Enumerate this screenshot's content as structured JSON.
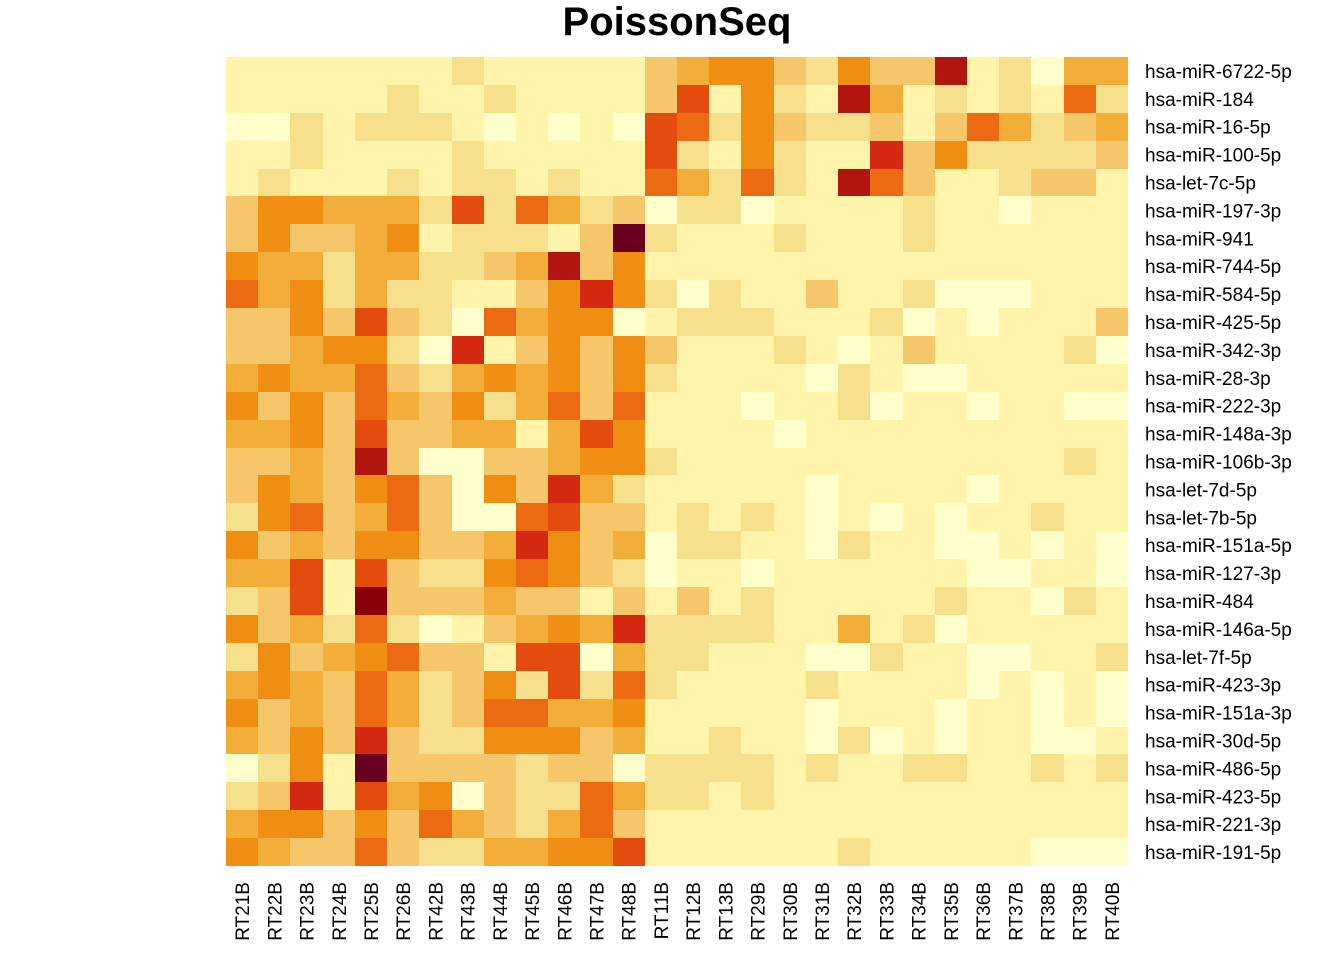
{
  "chart_data": {
    "type": "heatmap",
    "title": "PoissonSeq",
    "columns": [
      "RT21B",
      "RT22B",
      "RT23B",
      "RT24B",
      "RT25B",
      "RT26B",
      "RT42B",
      "RT43B",
      "RT44B",
      "RT45B",
      "RT46B",
      "RT47B",
      "RT48B",
      "RT11B",
      "RT12B",
      "RT13B",
      "RT29B",
      "RT30B",
      "RT31B",
      "RT32B",
      "RT33B",
      "RT34B",
      "RT35B",
      "RT36B",
      "RT37B",
      "RT38B",
      "RT39B",
      "RT40B"
    ],
    "rows": [
      "hsa-miR-6722-5p",
      "hsa-miR-184",
      "hsa-miR-16-5p",
      "hsa-miR-100-5p",
      "hsa-let-7c-5p",
      "hsa-miR-197-3p",
      "hsa-miR-941",
      "hsa-miR-744-5p",
      "hsa-miR-584-5p",
      "hsa-miR-425-5p",
      "hsa-miR-342-3p",
      "hsa-miR-28-3p",
      "hsa-miR-222-3p",
      "hsa-miR-148a-3p",
      "hsa-miR-106b-3p",
      "hsa-let-7d-5p",
      "hsa-let-7b-5p",
      "hsa-miR-151a-5p",
      "hsa-miR-127-3p",
      "hsa-miR-484",
      "hsa-miR-146a-5p",
      "hsa-let-7f-5p",
      "hsa-miR-423-3p",
      "hsa-miR-151a-3p",
      "hsa-miR-30d-5p",
      "hsa-miR-486-5p",
      "hsa-miR-423-5p",
      "hsa-miR-221-3p",
      "hsa-miR-191-5p"
    ],
    "color_scale": [
      "#FFFFCC",
      "#FFF4AA",
      "#F7E08C",
      "#F5C76A",
      "#F3AE39",
      "#F08E14",
      "#EC6A11",
      "#E34C0C",
      "#D52810",
      "#B01510",
      "#8A0008",
      "#6A0020"
    ],
    "values": [
      [
        1,
        1,
        1,
        1,
        1,
        1,
        1,
        2,
        1,
        1,
        1,
        1,
        1,
        3,
        4,
        5,
        5,
        3,
        2,
        5,
        3,
        3,
        9,
        1,
        2,
        0,
        4,
        4
      ],
      [
        1,
        1,
        1,
        1,
        1,
        2,
        1,
        1,
        2,
        1,
        1,
        1,
        1,
        3,
        7,
        1,
        5,
        2,
        1,
        9,
        4,
        1,
        2,
        1,
        2,
        1,
        6,
        2
      ],
      [
        0,
        0,
        2,
        1,
        2,
        2,
        2,
        1,
        0,
        1,
        0,
        1,
        0,
        7,
        6,
        2,
        5,
        3,
        2,
        2,
        3,
        1,
        3,
        6,
        4,
        2,
        3,
        4
      ],
      [
        1,
        1,
        2,
        1,
        1,
        1,
        1,
        2,
        1,
        1,
        1,
        1,
        1,
        7,
        2,
        1,
        5,
        2,
        1,
        1,
        8,
        3,
        5,
        2,
        2,
        2,
        2,
        3
      ],
      [
        1,
        2,
        1,
        1,
        1,
        2,
        1,
        2,
        2,
        1,
        2,
        1,
        1,
        6,
        4,
        2,
        6,
        2,
        1,
        9,
        6,
        3,
        1,
        1,
        2,
        3,
        3,
        1
      ],
      [
        3,
        5,
        5,
        4,
        4,
        4,
        2,
        7,
        2,
        6,
        4,
        2,
        3,
        0,
        2,
        2,
        0,
        1,
        1,
        1,
        1,
        2,
        1,
        1,
        0,
        1,
        1,
        1
      ],
      [
        3,
        5,
        3,
        3,
        4,
        5,
        1,
        2,
        2,
        2,
        1,
        3,
        11,
        2,
        1,
        1,
        1,
        2,
        1,
        1,
        1,
        2,
        1,
        1,
        1,
        1,
        1,
        1
      ],
      [
        5,
        4,
        4,
        2,
        4,
        4,
        2,
        2,
        3,
        4,
        9,
        3,
        5,
        1,
        1,
        1,
        1,
        1,
        1,
        1,
        1,
        1,
        1,
        1,
        1,
        1,
        1,
        1
      ],
      [
        6,
        4,
        5,
        2,
        4,
        2,
        2,
        1,
        1,
        3,
        5,
        8,
        5,
        2,
        0,
        2,
        1,
        1,
        3,
        1,
        1,
        2,
        0,
        0,
        0,
        1,
        1,
        1
      ],
      [
        3,
        3,
        5,
        3,
        7,
        3,
        2,
        0,
        6,
        4,
        5,
        5,
        0,
        1,
        2,
        2,
        2,
        1,
        1,
        1,
        2,
        0,
        1,
        0,
        1,
        1,
        1,
        3
      ],
      [
        3,
        3,
        4,
        5,
        5,
        2,
        0,
        8,
        1,
        3,
        5,
        3,
        5,
        3,
        1,
        1,
        1,
        2,
        1,
        0,
        1,
        3,
        1,
        1,
        1,
        1,
        2,
        0
      ],
      [
        4,
        5,
        4,
        4,
        6,
        3,
        2,
        4,
        5,
        4,
        5,
        3,
        5,
        2,
        1,
        1,
        1,
        1,
        0,
        2,
        1,
        0,
        0,
        1,
        1,
        1,
        1,
        1
      ],
      [
        5,
        3,
        5,
        3,
        6,
        4,
        3,
        5,
        2,
        4,
        6,
        3,
        6,
        1,
        1,
        1,
        0,
        1,
        1,
        2,
        0,
        1,
        1,
        0,
        1,
        1,
        0,
        0
      ],
      [
        4,
        4,
        5,
        3,
        7,
        3,
        3,
        4,
        4,
        1,
        4,
        7,
        5,
        1,
        1,
        1,
        1,
        0,
        1,
        1,
        1,
        1,
        1,
        1,
        1,
        1,
        1,
        1
      ],
      [
        3,
        3,
        4,
        3,
        9,
        3,
        0,
        0,
        3,
        3,
        4,
        5,
        5,
        2,
        1,
        1,
        1,
        1,
        1,
        1,
        1,
        1,
        1,
        1,
        1,
        1,
        2,
        1
      ],
      [
        3,
        5,
        4,
        3,
        5,
        6,
        3,
        0,
        5,
        3,
        8,
        4,
        2,
        1,
        1,
        1,
        1,
        1,
        0,
        1,
        1,
        1,
        1,
        0,
        1,
        1,
        1,
        1
      ],
      [
        2,
        5,
        6,
        3,
        4,
        6,
        3,
        0,
        0,
        6,
        7,
        3,
        3,
        1,
        2,
        1,
        2,
        1,
        0,
        1,
        0,
        1,
        0,
        1,
        1,
        2,
        1,
        1
      ],
      [
        5,
        3,
        4,
        3,
        5,
        5,
        3,
        3,
        4,
        8,
        5,
        3,
        4,
        0,
        2,
        2,
        1,
        1,
        0,
        2,
        1,
        1,
        0,
        0,
        1,
        0,
        1,
        0
      ],
      [
        4,
        4,
        7,
        1,
        7,
        3,
        2,
        2,
        5,
        6,
        5,
        3,
        2,
        0,
        1,
        1,
        0,
        1,
        1,
        1,
        1,
        1,
        1,
        0,
        0,
        1,
        1,
        0
      ],
      [
        2,
        3,
        7,
        1,
        10,
        3,
        3,
        3,
        4,
        3,
        3,
        1,
        3,
        1,
        3,
        1,
        2,
        1,
        1,
        1,
        1,
        1,
        2,
        1,
        1,
        0,
        2,
        1
      ],
      [
        5,
        3,
        4,
        2,
        6,
        2,
        0,
        1,
        3,
        4,
        5,
        4,
        8,
        2,
        2,
        2,
        2,
        1,
        1,
        4,
        1,
        2,
        0,
        1,
        1,
        1,
        1,
        1
      ],
      [
        2,
        5,
        3,
        4,
        5,
        6,
        3,
        3,
        1,
        7,
        7,
        0,
        4,
        2,
        2,
        1,
        1,
        1,
        0,
        0,
        2,
        1,
        1,
        0,
        0,
        1,
        1,
        2
      ],
      [
        4,
        5,
        4,
        3,
        6,
        4,
        2,
        3,
        5,
        2,
        7,
        2,
        6,
        2,
        1,
        1,
        1,
        1,
        2,
        1,
        1,
        1,
        1,
        0,
        1,
        0,
        1,
        0
      ],
      [
        5,
        3,
        4,
        3,
        6,
        4,
        2,
        3,
        6,
        6,
        4,
        4,
        5,
        1,
        1,
        1,
        1,
        1,
        0,
        1,
        1,
        1,
        0,
        1,
        1,
        0,
        1,
        0
      ],
      [
        4,
        3,
        5,
        3,
        8,
        3,
        2,
        2,
        5,
        5,
        5,
        3,
        4,
        1,
        1,
        2,
        1,
        1,
        0,
        2,
        0,
        1,
        0,
        1,
        1,
        0,
        0,
        1
      ],
      [
        0,
        2,
        5,
        1,
        11,
        3,
        3,
        3,
        3,
        2,
        3,
        3,
        0,
        2,
        2,
        2,
        2,
        1,
        2,
        1,
        1,
        2,
        2,
        1,
        1,
        2,
        1,
        2
      ],
      [
        2,
        3,
        8,
        1,
        7,
        4,
        5,
        0,
        3,
        2,
        2,
        6,
        4,
        2,
        2,
        1,
        2,
        1,
        1,
        1,
        1,
        1,
        1,
        1,
        1,
        1,
        1,
        1
      ],
      [
        4,
        5,
        5,
        3,
        5,
        3,
        6,
        4,
        3,
        2,
        4,
        6,
        3,
        1,
        1,
        1,
        1,
        1,
        1,
        1,
        1,
        1,
        1,
        1,
        1,
        1,
        1,
        1
      ],
      [
        5,
        4,
        3,
        3,
        6,
        3,
        2,
        2,
        4,
        4,
        5,
        5,
        7,
        1,
        1,
        1,
        1,
        1,
        1,
        2,
        1,
        1,
        1,
        1,
        1,
        0,
        0,
        0
      ]
    ]
  }
}
